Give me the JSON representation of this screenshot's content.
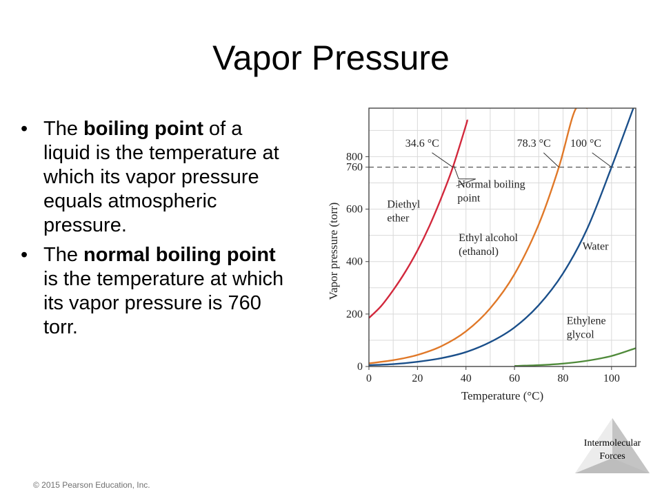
{
  "slide": {
    "title": "Vapor Pressure",
    "bullets": [
      {
        "pre": "The ",
        "bold": "boiling point",
        "post": " of a liquid is the temperature at which its vapor pressure equals atmospheric pressure."
      },
      {
        "pre": "The ",
        "bold": "normal boiling point",
        "post": " is the temperature at which its vapor pressure is 760 torr."
      }
    ],
    "footer": "© 2015 Pearson Education, Inc.",
    "corner_label": [
      "Intermolecular",
      "Forces"
    ]
  },
  "chart_data": {
    "type": "line",
    "xlabel": "Temperature (°C)",
    "ylabel": "Vapor pressure (torr)",
    "xlim": [
      0,
      110
    ],
    "ylim": [
      0,
      985
    ],
    "xticks": [
      0,
      20,
      40,
      60,
      80,
      100
    ],
    "yticks": [
      0,
      200,
      400,
      600,
      760,
      800
    ],
    "grid": true,
    "reference_line": {
      "y": 760,
      "style": "dashed"
    },
    "series": [
      {
        "name": "Diethyl ether",
        "color": "#d2283c",
        "label_lines": [
          "Diethyl",
          "ether"
        ],
        "x": [
          0,
          5,
          10,
          15,
          20,
          25,
          30,
          34.6,
          40,
          40.5
        ],
        "y": [
          185,
          230,
          291,
          361,
          442,
          537,
          647,
          760,
          920,
          940
        ]
      },
      {
        "name": "Ethyl alcohol (ethanol)",
        "color": "#e07828",
        "label_lines": [
          "Ethyl alcohol",
          "(ethanol)"
        ],
        "x": [
          0,
          10,
          20,
          30,
          40,
          50,
          60,
          70,
          78.3,
          85,
          90
        ],
        "y": [
          12,
          24,
          44,
          78,
          134,
          222,
          352,
          542,
          760,
          978,
          985
        ]
      },
      {
        "name": "Water",
        "color": "#1a4f8a",
        "label_lines": [
          "Water"
        ],
        "x": [
          0,
          10,
          20,
          30,
          40,
          50,
          60,
          70,
          80,
          90,
          100,
          109
        ],
        "y": [
          5,
          9,
          18,
          32,
          55,
          93,
          149,
          234,
          355,
          526,
          760,
          985
        ]
      },
      {
        "name": "Ethylene glycol",
        "color": "#4f8a3a",
        "label_lines": [
          "Ethylene",
          "glycol"
        ],
        "x": [
          60,
          70,
          80,
          90,
          100,
          110
        ],
        "y": [
          2,
          5,
          11,
          22,
          40,
          70
        ]
      }
    ],
    "annotations": [
      {
        "text": "34.6 °C",
        "x": 34.6,
        "y": 760
      },
      {
        "text": "78.3 °C",
        "x": 78.3,
        "y": 760
      },
      {
        "text": "100 °C",
        "x": 100,
        "y": 760
      },
      {
        "text_lines": [
          "Normal boiling",
          "point"
        ],
        "x": 34.6,
        "y": 760
      }
    ]
  }
}
